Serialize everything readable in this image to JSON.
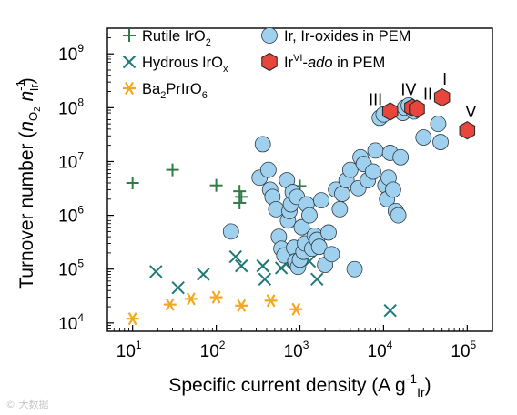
{
  "chart_data": {
    "type": "scatter",
    "x_scale": "log",
    "y_scale": "log",
    "xlim": [
      5,
      200000
    ],
    "ylim": [
      7000,
      3000000000
    ],
    "x_ticks": [
      {
        "value": 10,
        "base": "10",
        "exp": "1"
      },
      {
        "value": 100,
        "base": "10",
        "exp": "2"
      },
      {
        "value": 1000,
        "base": "10",
        "exp": "3"
      },
      {
        "value": 10000,
        "base": "10",
        "exp": "4"
      },
      {
        "value": 100000,
        "base": "10",
        "exp": "5"
      }
    ],
    "y_ticks": [
      {
        "value": 10000,
        "base": "10",
        "exp": "4"
      },
      {
        "value": 100000,
        "base": "10",
        "exp": "5"
      },
      {
        "value": 1000000,
        "base": "10",
        "exp": "6"
      },
      {
        "value": 10000000,
        "base": "10",
        "exp": "7"
      },
      {
        "value": 100000000,
        "base": "10",
        "exp": "8"
      },
      {
        "value": 1000000000,
        "base": "10",
        "exp": "9"
      }
    ],
    "xlabel": {
      "main": "Specific current density (A g",
      "sup": "-1",
      "sub": "Ir",
      "close": ")"
    },
    "ylabel": {
      "main": "Turnover number (",
      "n1": "n",
      "sub1": "O",
      "sub1b": "2",
      "n2": " n",
      "sup2": "-1",
      "sub2": "Ir",
      "close": ")"
    },
    "grid": false,
    "legend_placement": "top",
    "series": [
      {
        "name": "Rutile IrO",
        "name_sub": "2",
        "marker": "plus",
        "color": "#2e7d46",
        "points": [
          [
            10,
            4000000.0
          ],
          [
            30,
            7000000.0
          ],
          [
            100,
            3600000.0
          ],
          [
            190,
            2800000.0
          ],
          [
            200,
            2200000.0
          ],
          [
            190,
            1700000.0
          ],
          [
            1000,
            3500000.0
          ]
        ]
      },
      {
        "name": "Hydrous IrO",
        "name_sub": "x",
        "marker": "x",
        "color": "#1e7a78",
        "points": [
          [
            19,
            90000.0
          ],
          [
            35,
            45000.0
          ],
          [
            70,
            80000.0
          ],
          [
            170,
            170000.0
          ],
          [
            200,
            115000.0
          ],
          [
            360,
            115000.0
          ],
          [
            380,
            65000.0
          ],
          [
            600,
            105000.0
          ],
          [
            680,
            125000.0
          ],
          [
            1300,
            140000.0
          ],
          [
            1600,
            65000.0
          ],
          [
            12000,
            17000.0
          ]
        ]
      },
      {
        "name": "Ba",
        "name_sub": "2",
        "name_tail": "PrIrO",
        "name_sub2": "6",
        "marker": "asterisk",
        "color": "#f2a91e",
        "points": [
          [
            10,
            12000.0
          ],
          [
            28,
            22000.0
          ],
          [
            50,
            28000.0
          ],
          [
            100,
            30000.0
          ],
          [
            200,
            21000.0
          ],
          [
            450,
            26000.0
          ],
          [
            900,
            18000.0
          ]
        ]
      },
      {
        "name": "Ir, Ir-oxides in PEM",
        "marker": "circle",
        "color": "#9fd0ee",
        "points": [
          [
            150,
            500000.0
          ],
          [
            330,
            5000000.0
          ],
          [
            360,
            21000000.0
          ],
          [
            420,
            7000000.0
          ],
          [
            440,
            3000000.0
          ],
          [
            470,
            2200000.0
          ],
          [
            520,
            1300000.0
          ],
          [
            560,
            400000.0
          ],
          [
            600,
            240000.0
          ],
          [
            650,
            180000.0
          ],
          [
            700,
            4500000.0
          ],
          [
            720,
            800000.0
          ],
          [
            750,
            1200000.0
          ],
          [
            780,
            1600000.0
          ],
          [
            820,
            2700000.0
          ],
          [
            850,
            250000.0
          ],
          [
            880,
            140000.0
          ],
          [
            920,
            2200000.0
          ],
          [
            950,
            110000.0
          ],
          [
            1000,
            150000.0
          ],
          [
            1050,
            600000.0
          ],
          [
            1100,
            210000.0
          ],
          [
            1150,
            300000.0
          ],
          [
            1200,
            1600000.0
          ],
          [
            1300,
            1000000.0
          ],
          [
            1400,
            240000.0
          ],
          [
            1500,
            420000.0
          ],
          [
            1600,
            350000.0
          ],
          [
            1700,
            260000.0
          ],
          [
            1800,
            1900000.0
          ],
          [
            2000,
            120000.0
          ],
          [
            2200,
            480000.0
          ],
          [
            2400,
            190000.0
          ],
          [
            2700,
            3000000.0
          ],
          [
            3000,
            1300000.0
          ],
          [
            3200,
            2500000.0
          ],
          [
            3600,
            4500000.0
          ],
          [
            4000,
            7000000.0
          ],
          [
            4500,
            100000.0
          ],
          [
            5000,
            3200000.0
          ],
          [
            5300,
            12000000.0
          ],
          [
            5800,
            9000000.0
          ],
          [
            6500,
            4500000.0
          ],
          [
            7500,
            6500000.0
          ],
          [
            8000,
            16000000.0
          ],
          [
            9000,
            65000000.0
          ],
          [
            10000,
            75000000.0
          ],
          [
            10500,
            3600000.0
          ],
          [
            11000,
            2000000.0
          ],
          [
            11500,
            5000000.0
          ],
          [
            12000,
            14500000.0
          ],
          [
            13000,
            3000000.0
          ],
          [
            14000,
            1200000.0
          ],
          [
            15000,
            1000000.0
          ],
          [
            16000,
            12000000.0
          ],
          [
            17000,
            80000000.0
          ],
          [
            18000,
            100000000.0
          ],
          [
            20000,
            110000000.0
          ],
          [
            23000,
            85000000.0
          ],
          [
            30000,
            28000000.0
          ],
          [
            45000,
            50000000.0
          ],
          [
            48000,
            23000000.0
          ]
        ]
      },
      {
        "name": "Ir",
        "name_sup": "VI",
        "name_dash": "-",
        "name_ital": "ado",
        "name_tail": " in PEM",
        "marker": "hexagon",
        "color": "#e8453c",
        "points": [
          {
            "x": 12000,
            "y": 85000000.0,
            "label": "III"
          },
          {
            "x": 22000,
            "y": 100000000.0,
            "label": "IV"
          },
          {
            "x": 25000,
            "y": 95000000.0,
            "label": "II"
          },
          {
            "x": 50000,
            "y": 155000000.0,
            "label": "I"
          },
          {
            "x": 100000,
            "y": 38000000.0,
            "label": "V"
          }
        ]
      }
    ]
  },
  "watermark": "© 大数据"
}
